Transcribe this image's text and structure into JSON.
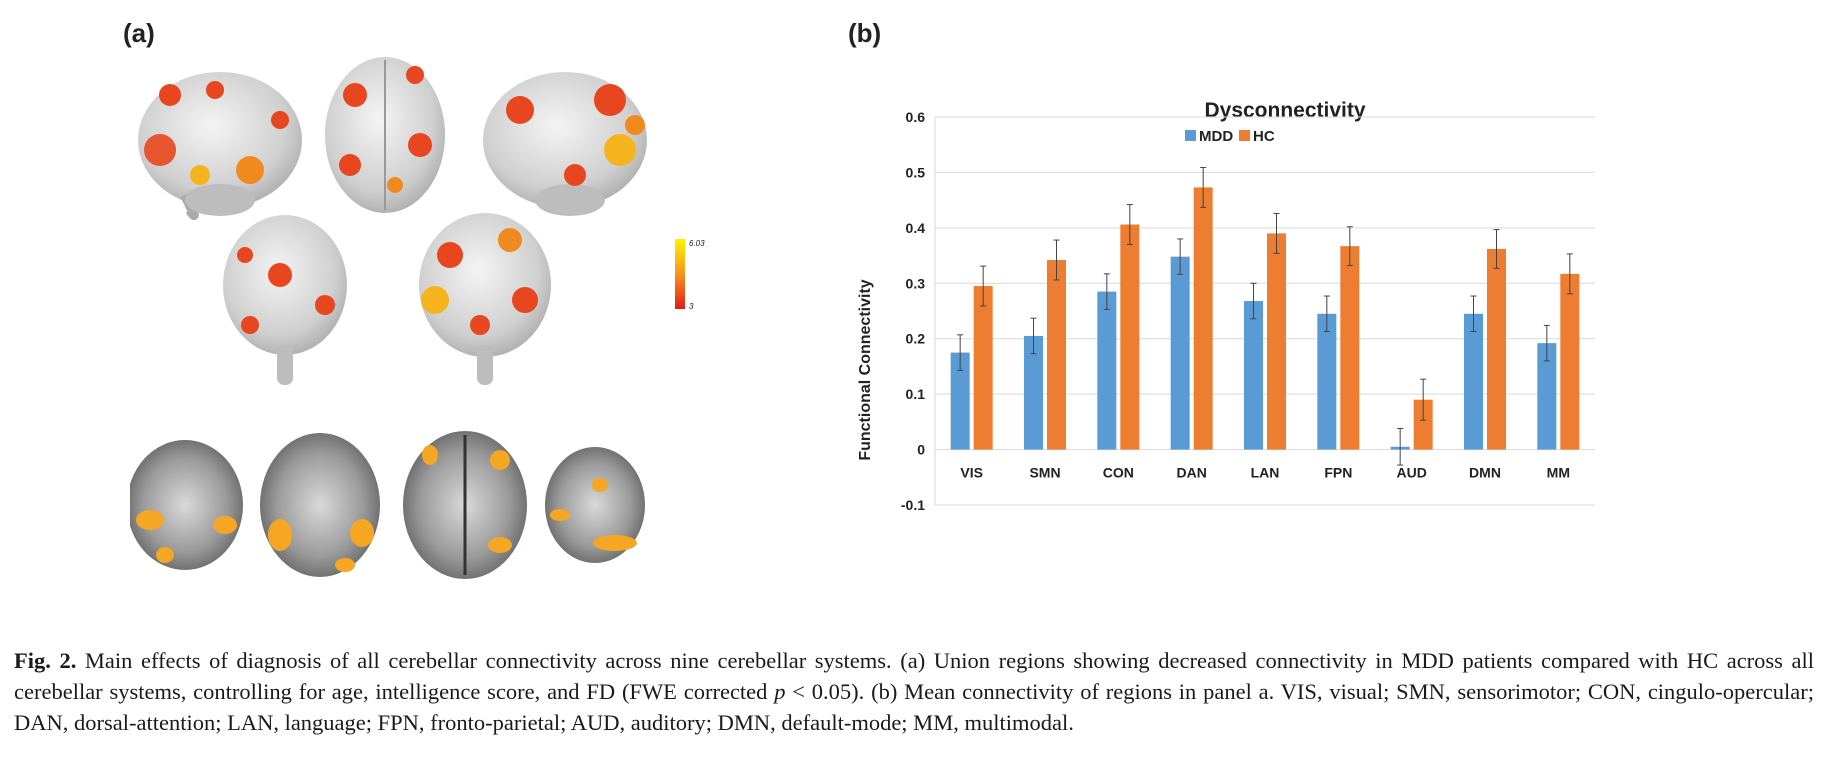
{
  "panels": {
    "a_label": "(a)",
    "b_label": "(b)"
  },
  "colorbar": {
    "max_label": "6.03",
    "min_label": "3"
  },
  "colors": {
    "mdd": "#5B9BD5",
    "hc": "#ED7D31",
    "activation_hot": "#e8321e",
    "activation_warm": "#f5a623",
    "brain": "#d8d8d8"
  },
  "chart_data": {
    "type": "bar",
    "title": "Dysconnectivity",
    "ylabel": "Functional Connectivity",
    "xlabel": "",
    "categories": [
      "VIS",
      "SMN",
      "CON",
      "DAN",
      "LAN",
      "FPN",
      "AUD",
      "DMN",
      "MM"
    ],
    "series": [
      {
        "name": "MDD",
        "values": [
          0.175,
          0.205,
          0.285,
          0.348,
          0.268,
          0.245,
          0.005,
          0.245,
          0.192
        ],
        "errors": [
          0.032,
          0.032,
          0.032,
          0.032,
          0.032,
          0.032,
          0.033,
          0.032,
          0.032
        ]
      },
      {
        "name": "HC",
        "values": [
          0.295,
          0.342,
          0.406,
          0.473,
          0.39,
          0.367,
          0.09,
          0.362,
          0.317
        ],
        "errors": [
          0.036,
          0.036,
          0.036,
          0.036,
          0.036,
          0.035,
          0.037,
          0.035,
          0.036
        ]
      }
    ],
    "ylim": [
      -0.1,
      0.6
    ],
    "yticks": [
      "-0.1",
      "0",
      "0.1",
      "0.2",
      "0.3",
      "0.4",
      "0.5",
      "0.6"
    ],
    "grid": true,
    "legend": "top-center"
  },
  "caption": {
    "fig_label": "Fig. 2.",
    "text_1": " Main effects of diagnosis of all cerebellar connectivity across nine cerebellar systems. (a) Union regions showing decreased connectivity in MDD patients compared with HC across all cerebellar systems, controlling for age, intelligence score, and FD (FWE corrected ",
    "p_symbol": "p",
    "text_2": " < 0.05). (b) Mean connectivity of regions in panel a. VIS, visual; SMN, sensorimotor; CON, cingulo-opercular; DAN, dorsal-attention; LAN, language; FPN, fronto-parietal; AUD, auditory; DMN, default-mode; MM, multimodal."
  }
}
